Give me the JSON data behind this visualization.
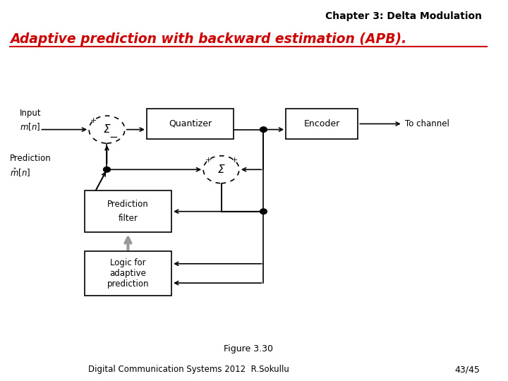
{
  "title_right": "Chapter 3: Delta Modulation",
  "title_left": "Adaptive prediction with backward estimation (APB).",
  "figure_label": "Figure 3.30",
  "footer_left": "Digital Communication Systems 2012  R.Sokullu",
  "footer_right": "43/45",
  "bg_color": "#ffffff",
  "red_color": "#cc0000"
}
